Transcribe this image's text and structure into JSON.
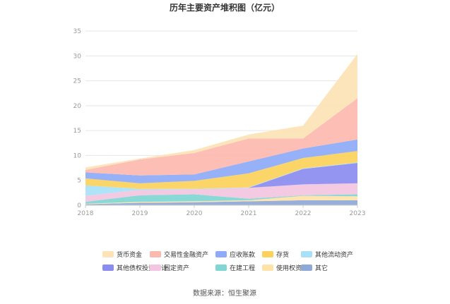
{
  "chart_data": {
    "type": "area",
    "title": "历年主要资产堆积图（亿元）",
    "x": [
      "2018",
      "2019",
      "2020",
      "2021",
      "2022",
      "2023"
    ],
    "ylim": [
      0,
      35
    ],
    "yticks": [
      "0",
      "5",
      "10",
      "15",
      "20",
      "25",
      "30",
      "35"
    ],
    "grid": true,
    "stacked": true,
    "legend_position": "bottom",
    "series": [
      {
        "name": "其它",
        "color": "#8fa9d6",
        "values": [
          0.2,
          0.5,
          0.6,
          0.8,
          1.0,
          1.0
        ]
      },
      {
        "name": "使用权资产",
        "color": "#ffe2a8",
        "values": [
          0.1,
          0.2,
          0.2,
          0.2,
          0.9,
          0.8
        ]
      },
      {
        "name": "在建工程",
        "color": "#7fd6d3",
        "values": [
          0.4,
          1.3,
          1.4,
          0.3,
          0.1,
          0.4
        ]
      },
      {
        "name": "固定资产",
        "color": "#f2c6e0",
        "values": [
          1.2,
          1.1,
          1.0,
          2.2,
          2.2,
          2.2
        ]
      },
      {
        "name": "其他债权投资合计",
        "color": "#8a8cf0",
        "values": [
          0.0,
          0.0,
          0.0,
          0.0,
          3.1,
          4.1
        ]
      },
      {
        "name": "其他流动资产",
        "color": "#a8e1f7",
        "values": [
          2.1,
          0.2,
          0.1,
          0.1,
          0.1,
          0.1
        ]
      },
      {
        "name": "存货",
        "color": "#fcd15c",
        "values": [
          1.4,
          1.1,
          1.6,
          2.8,
          2.1,
          2.3
        ]
      },
      {
        "name": "应收账款",
        "color": "#8eaaf8",
        "values": [
          1.2,
          1.6,
          1.3,
          2.4,
          1.9,
          2.3
        ]
      },
      {
        "name": "交易性金融资产",
        "color": "#fdb8b0",
        "values": [
          0.5,
          3.2,
          4.3,
          4.6,
          2.0,
          8.3
        ]
      },
      {
        "name": "货币资金",
        "color": "#fde3b5",
        "values": [
          0.5,
          0.2,
          0.6,
          0.8,
          2.6,
          8.9
        ]
      }
    ],
    "legend": {
      "rows": [
        [
          "货币资金",
          "交易性金融资产",
          "应收账款",
          "存货",
          "其他流动资产"
        ],
        [
          "其他债权投资合计",
          "固定资产",
          "在建工程",
          "使用权资产",
          "其它"
        ]
      ]
    }
  },
  "source_text": "数据来源：恒生聚源"
}
